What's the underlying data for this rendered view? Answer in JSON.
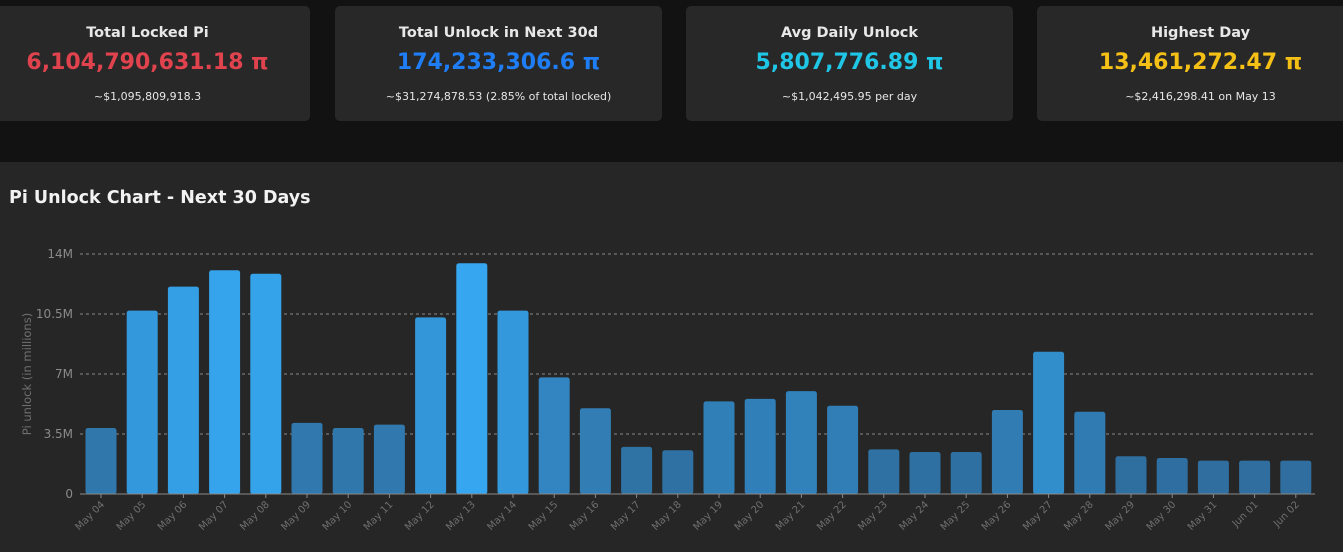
{
  "stats": [
    {
      "title": "Total Locked Pi",
      "value": "6,104,790,631.18 π",
      "sub": "~$1,095,809,918.3",
      "color": "#e0434e"
    },
    {
      "title": "Total Unlock in Next 30d",
      "value": "174,233,306.6 π",
      "sub": "~$31,274,878.53 (2.85% of total locked)",
      "color": "#1f7ef5"
    },
    {
      "title": "Avg Daily Unlock",
      "value": "5,807,776.89 π",
      "sub": "~$1,042,495.95 per day",
      "color": "#1fc6e6"
    },
    {
      "title": "Highest Day",
      "value": "13,461,272.47 π",
      "sub": "~$2,416,298.41 on May 13",
      "color": "#f5c016"
    }
  ],
  "chart_title": "Pi Unlock Chart - Next 30 Days",
  "chart_data": {
    "type": "bar",
    "title": "",
    "ylabel": "Pi unlock (in millions)",
    "xlabel": "",
    "ylim": [
      0,
      14
    ],
    "y_ticks": [
      0,
      3.5,
      7,
      10.5,
      14
    ],
    "y_tick_labels": [
      "0",
      "3.5M",
      "7M",
      "10.5M",
      "14M"
    ],
    "grid": true,
    "categories": [
      "May 04",
      "May 05",
      "May 06",
      "May 07",
      "May 08",
      "May 09",
      "May 10",
      "May 11",
      "May 12",
      "May 13",
      "May 14",
      "May 15",
      "May 16",
      "May 17",
      "May 18",
      "May 19",
      "May 20",
      "May 21",
      "May 22",
      "May 23",
      "May 24",
      "May 25",
      "May 26",
      "May 27",
      "May 28",
      "May 29",
      "May 30",
      "May 31",
      "Jun 01",
      "Jun 02"
    ],
    "values": [
      3.85,
      10.7,
      12.1,
      13.05,
      12.85,
      4.15,
      3.85,
      4.05,
      10.3,
      13.46,
      10.7,
      6.8,
      5.0,
      2.75,
      2.55,
      5.4,
      5.55,
      6.0,
      5.15,
      2.6,
      2.45,
      2.45,
      4.9,
      8.3,
      4.8,
      2.2,
      2.1,
      1.95,
      1.95,
      1.95
    ],
    "colors": {
      "bar_low": "#2f6e9f",
      "bar_high": "#35a6ef",
      "grid": "#8a8a8a",
      "tick_text": "#8a8a8a"
    }
  }
}
